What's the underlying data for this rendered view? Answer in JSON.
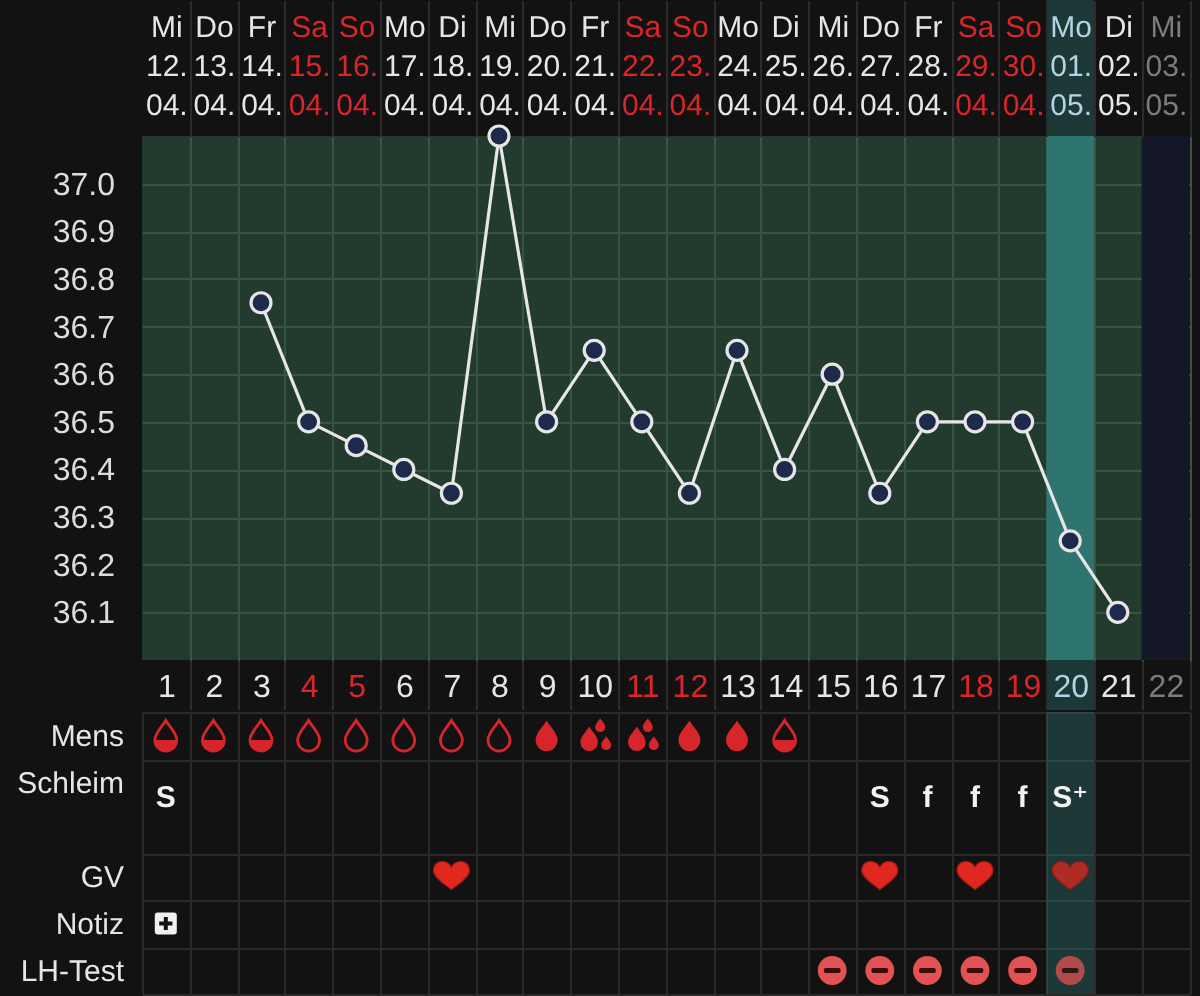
{
  "chart_data": [
    {
      "type": "line",
      "categories": [
        "Mi 12. 04.",
        "Do 13. 04.",
        "Fr 14. 04.",
        "Sa 15. 04.",
        "So 16. 04.",
        "Mo 17. 04.",
        "Di 18. 04.",
        "Mi 19. 04.",
        "Do 20. 04.",
        "Fr 21. 04.",
        "Sa 22. 04.",
        "So 23. 04.",
        "Mo 24. 04.",
        "Di 25. 04.",
        "Mi 26. 04.",
        "Do 27. 04.",
        "Fr 28. 04.",
        "Sa 29. 04.",
        "So 30. 04.",
        "Mo 01. 05.",
        "Di 02. 05.",
        "Mi 03. 05."
      ],
      "values": [
        null,
        null,
        36.75,
        36.5,
        36.45,
        36.4,
        36.35,
        37.1,
        36.5,
        36.65,
        36.5,
        36.35,
        36.65,
        36.4,
        36.6,
        36.35,
        36.5,
        36.5,
        36.5,
        36.25,
        36.1,
        null
      ],
      "color": "#e6e6e6",
      "marker": "circle",
      "grid": true,
      "x2lim": [
        0.5,
        22.5
      ],
      "x2ticks": [
        1,
        2,
        3,
        4,
        5,
        6,
        7,
        8,
        9,
        10,
        11,
        12,
        13,
        14,
        15,
        16,
        17,
        18,
        19,
        20,
        21,
        22
      ],
      "ylim": [
        36.0,
        37.1
      ],
      "yticks": [
        36.1,
        36.2,
        36.3,
        36.4,
        36.5,
        36.6,
        36.7,
        36.8,
        36.9,
        {
          "value": 37,
          "label": "37.0"
        }
      ],
      "bands": [
        {
          "axis": "x2",
          "from": 19.5,
          "to": 20.5,
          "color": "#2e7470"
        },
        {
          "axis": "x2",
          "from": 21.5,
          "to": 22.5,
          "color": "#131726"
        }
      ]
    },
    {
      "type": "other",
      "categories": [
        null,
        null,
        null,
        null,
        null,
        null,
        null,
        null,
        null,
        null,
        null,
        null,
        null,
        null,
        null,
        null,
        null,
        null,
        null,
        null,
        null,
        null
      ],
      "y_categories": [
        "Mens",
        "Schleim",
        "GV",
        "Notiz",
        "LH-Test"
      ],
      "cell_labels": [
        [
          null,
          null,
          null,
          null,
          null,
          null,
          null,
          null,
          null,
          null,
          null,
          null,
          null,
          null,
          null,
          null,
          null,
          null,
          null,
          null,
          null,
          null
        ],
        [
          "S",
          null,
          null,
          null,
          null,
          null,
          null,
          null,
          null,
          null,
          null,
          null,
          null,
          null,
          null,
          "S",
          "f",
          "f",
          "f",
          "S⁺",
          null,
          null
        ],
        [
          null,
          null,
          null,
          null,
          null,
          null,
          null,
          null,
          null,
          null,
          null,
          null,
          null,
          null,
          null,
          null,
          null,
          null,
          null,
          null,
          null,
          null
        ],
        [
          null,
          null,
          null,
          null,
          null,
          null,
          null,
          null,
          null,
          null,
          null,
          null,
          null,
          null,
          null,
          null,
          null,
          null,
          null,
          null,
          null,
          null
        ],
        [
          null,
          null,
          null,
          null,
          null,
          null,
          null,
          null,
          null,
          null,
          null,
          null,
          null,
          null,
          null,
          null,
          null,
          null,
          null,
          null,
          null,
          null
        ]
      ]
    }
  ]
}
